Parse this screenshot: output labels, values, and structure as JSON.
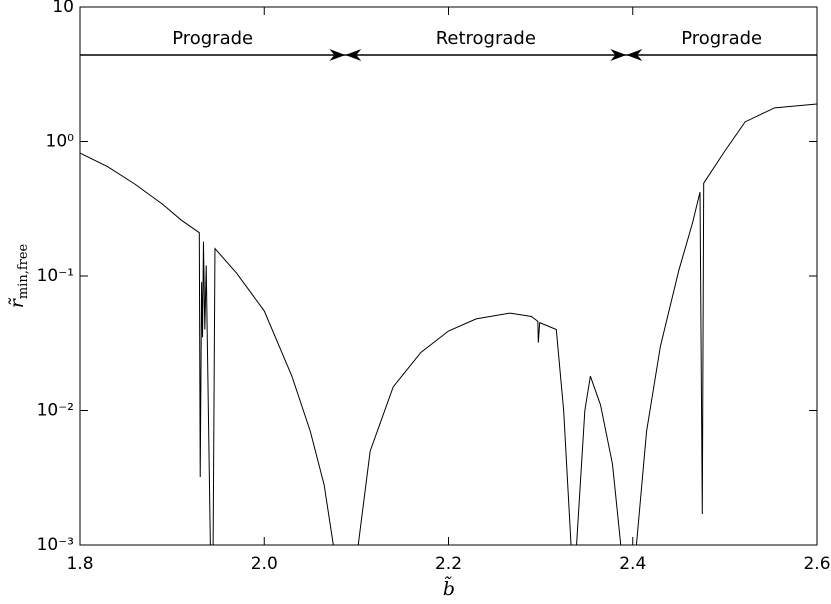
{
  "chart_data": {
    "type": "line",
    "xlabel": "b̃",
    "ylabel": {
      "main": "r̃",
      "sub": "min,free"
    },
    "xlim": [
      1.8,
      2.6
    ],
    "ylim": [
      0.001,
      10
    ],
    "log_y": true,
    "xticks": [
      1.8,
      {
        "value": 2,
        "label": "2.0"
      },
      2.2,
      2.4,
      2.6
    ],
    "yticks": [
      {
        "value": 0.001,
        "label": "10⁻³"
      },
      {
        "value": 0.01,
        "label": "10⁻²"
      },
      {
        "value": 0.1,
        "label": "10⁻¹"
      },
      {
        "value": 1,
        "label": "10⁰"
      },
      10
    ],
    "color": "#000000",
    "region_y": 4.4,
    "regions": [
      {
        "label": "Prograde",
        "x": [
          1.8,
          2.088
        ]
      },
      {
        "label": "Retrograde",
        "x": [
          2.088,
          2.393
        ]
      },
      {
        "label": "Prograde",
        "x": [
          2.393,
          2.6
        ]
      }
    ],
    "x": [
      1.8,
      1.83,
      1.86,
      1.89,
      1.91,
      1.9295,
      1.9305,
      1.932,
      1.933,
      1.934,
      1.9355,
      1.937,
      1.9415,
      null,
      1.9445,
      1.9465,
      1.97,
      2.0,
      2.03,
      2.05,
      2.065,
      2.075,
      null,
      2.102,
      2.115,
      2.14,
      2.17,
      2.2,
      2.23,
      2.267,
      2.29,
      2.297,
      2.2975,
      2.299,
      2.317,
      2.325,
      2.333,
      null,
      2.339,
      2.348,
      2.354,
      2.365,
      2.378,
      2.387,
      null,
      2.404,
      2.415,
      2.43,
      2.45,
      2.465,
      2.473,
      2.4755,
      2.477,
      2.5,
      2.522,
      2.554,
      2.6
    ],
    "values": [
      0.82,
      0.65,
      0.48,
      0.34,
      0.26,
      0.21,
      0.0032,
      0.09,
      0.035,
      0.18,
      0.04,
      0.12,
      0.001,
      null,
      0.001,
      0.16,
      0.105,
      0.055,
      0.018,
      0.007,
      0.0028,
      0.001,
      null,
      0.001,
      0.005,
      0.015,
      0.027,
      0.039,
      0.048,
      0.053,
      0.05,
      0.046,
      0.032,
      0.045,
      0.04,
      0.01,
      0.001,
      null,
      0.001,
      0.01,
      0.018,
      0.011,
      0.004,
      0.001,
      null,
      0.001,
      0.007,
      0.03,
      0.11,
      0.25,
      0.42,
      0.0017,
      0.49,
      0.85,
      1.4,
      1.78,
      1.9
    ]
  }
}
